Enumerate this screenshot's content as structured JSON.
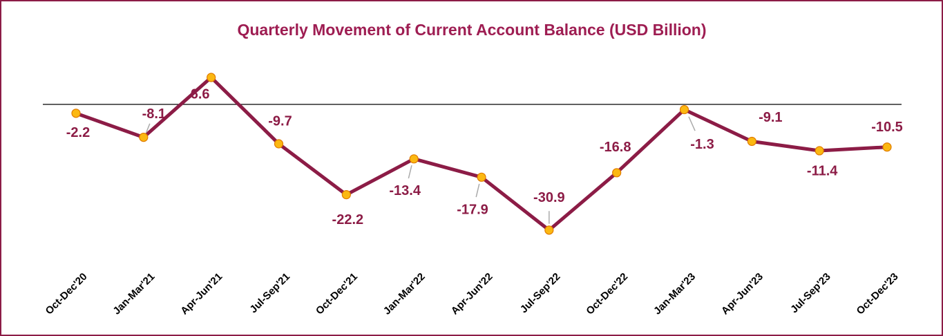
{
  "chart_data": {
    "type": "line",
    "title": "Quarterly Movement of Current Account Balance (USD Billion)",
    "categories": [
      "Oct-Dec'20",
      "Jan-Mar'21",
      "Apr-Jun'21",
      "Jul-Sep'21",
      "Oct-Dec'21",
      "Jan-Mar'22",
      "Apr-Jun'22",
      "Jul-Sep'22",
      "Oct-Dec'22",
      "Jan-Mar'23",
      "Apr-Jun'23",
      "Jul-Sep'23",
      "Oct-Dec'23"
    ],
    "values": [
      -2.2,
      -8.1,
      6.6,
      -9.7,
      -22.2,
      -13.4,
      -17.9,
      -30.9,
      -16.8,
      -1.3,
      -9.1,
      -11.4,
      -10.5
    ],
    "color": "#8c1c46",
    "marker_color": "#fbb812",
    "ylim": [
      -35,
      10
    ]
  }
}
